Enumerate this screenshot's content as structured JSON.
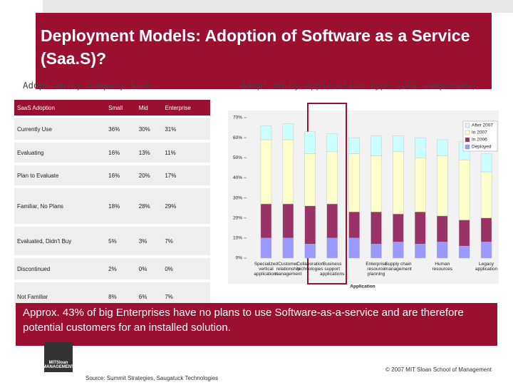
{
  "title": "Deployment Models: Adoption of Software as a Service (Saa.S)?",
  "left_heading": "Adoption by Company Size",
  "right_heading": "Adoption by Application Type (all companies)",
  "table": {
    "columns": [
      "SaaS Adoption",
      "Small",
      "Mid",
      "Enterprise"
    ],
    "rows": [
      [
        "Currently Use",
        "36%",
        "30%",
        "31%"
      ],
      [
        "Evaluating",
        "16%",
        "13%",
        "11%"
      ],
      [
        "Plan to Evaluate",
        "16%",
        "20%",
        "17%"
      ],
      [
        "Familiar, No Plans",
        "18%",
        "28%",
        "29%"
      ],
      [
        "Evaluated, Didn't Buy",
        "5%",
        "3%",
        "7%"
      ],
      [
        "Discontinued",
        "2%",
        "0%",
        "0%"
      ],
      [
        "Not Familiar",
        "8%",
        "6%",
        "7%"
      ]
    ]
  },
  "chart_data": {
    "type": "stacked_bar",
    "x_label": "Application",
    "categories": [
      "Specialized vertical applications",
      "Customer relationship management",
      "Collaboration technologies",
      "Business support applications",
      null,
      "Enterprise resource planning",
      "Supply chain management",
      null,
      "Human resources",
      null,
      "Legacy application"
    ],
    "series": [
      {
        "name": "Deployed",
        "color": "#9999ff",
        "values": [
          10,
          10,
          7,
          10,
          10,
          7,
          8,
          7,
          8,
          6,
          8
        ]
      },
      {
        "name": "In 2006",
        "color": "#993366",
        "values": [
          17,
          17,
          19,
          17,
          13,
          16,
          14,
          16,
          13,
          13,
          12
        ]
      },
      {
        "name": "In 2007",
        "color": "#ffffcc",
        "values": [
          32,
          32,
          26,
          26,
          29,
          28,
          31,
          27,
          30,
          30,
          23
        ]
      },
      {
        "name": "After 2007",
        "color": "#ccffff",
        "values": [
          7,
          8,
          11,
          9,
          8,
          10,
          8,
          10,
          8,
          9,
          9
        ]
      }
    ],
    "ylim": [
      0,
      70
    ],
    "yticks": [
      {
        "value": 0,
        "label": "0%"
      },
      {
        "value": 10,
        "label": "10%"
      },
      {
        "value": 20,
        "label": "20%"
      },
      {
        "value": 30,
        "label": "30%"
      },
      {
        "value": 40,
        "label": "40%"
      },
      {
        "value": 50,
        "label": "50%"
      },
      {
        "value": 60,
        "label": "60%"
      },
      {
        "value": 70,
        "label": "70%"
      }
    ],
    "legend": "upper right",
    "grid": false
  },
  "callout": "Approx. 43% of big Enterprises have no plans to use Software-as-a-service and are therefore potential customers for an installed solution.",
  "logo": "MITSloan MANAGEMENT",
  "copyright": "© 2007 MIT Sloan School of Management",
  "source": "Source: Summit Strategies, Saugatuck Technologies"
}
